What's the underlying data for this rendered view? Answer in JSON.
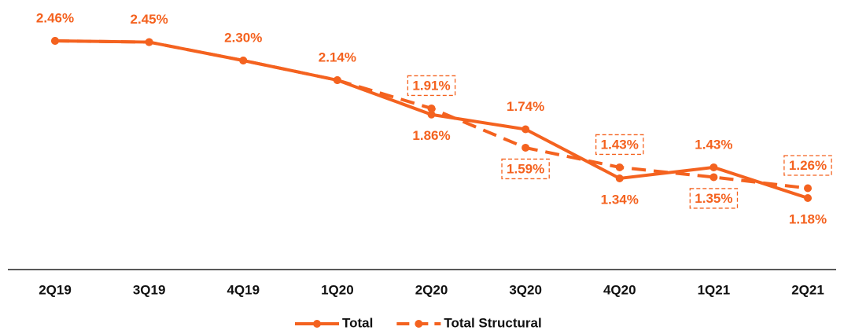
{
  "chart_data": {
    "type": "line",
    "categories": [
      "2Q19",
      "3Q19",
      "4Q19",
      "1Q20",
      "2Q20",
      "3Q20",
      "4Q20",
      "1Q21",
      "2Q21"
    ],
    "series": [
      {
        "name": "Total",
        "color": "#f4621f",
        "dash": false,
        "values": [
          2.46,
          2.45,
          2.3,
          2.14,
          1.86,
          1.74,
          1.34,
          1.43,
          1.18
        ],
        "value_labels": [
          "2.46%",
          "2.45%",
          "2.30%",
          "2.14%",
          "1.86%",
          "1.74%",
          "1.34%",
          "1.43%",
          "1.18%"
        ]
      },
      {
        "name": "Total Structural",
        "color": "#f4621f",
        "dash": true,
        "values": [
          2.46,
          2.45,
          2.3,
          2.14,
          1.91,
          1.59,
          1.43,
          1.35,
          1.26
        ],
        "value_labels": [
          null,
          null,
          null,
          null,
          "1.91%",
          "1.59%",
          "1.43%",
          "1.35%",
          "1.26%"
        ]
      }
    ]
  }
}
